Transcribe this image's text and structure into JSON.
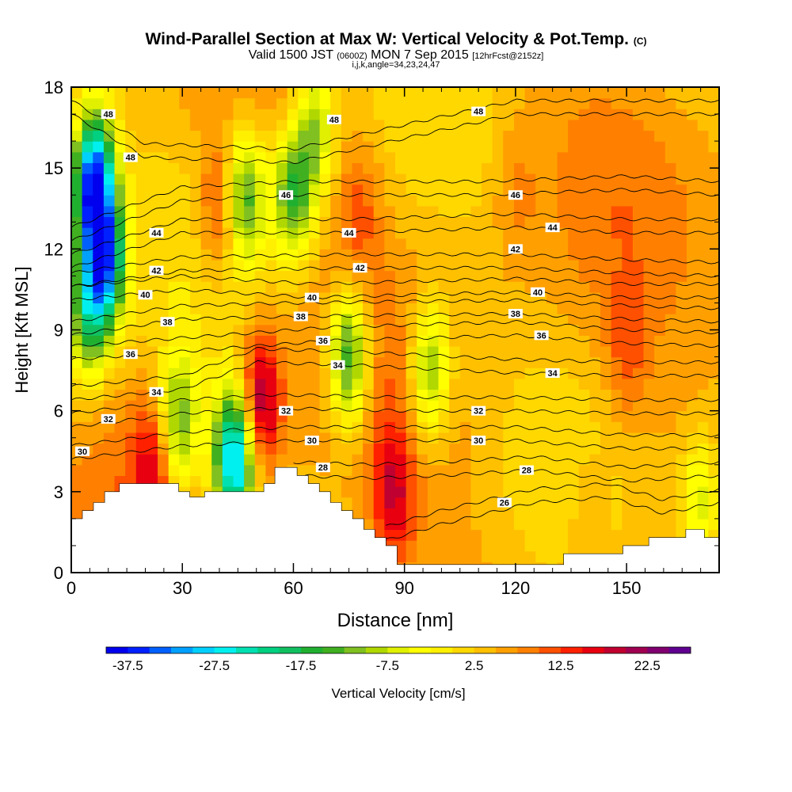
{
  "title": {
    "main": "Wind-Parallel Section at Max W: Vertical Velocity & Pot.Temp.",
    "copyright": "(C)",
    "valid_prefix": "Valid 1500 JST",
    "valid_utc": "(0600Z)",
    "valid_date": "MON 7 Sep 2015",
    "forecast": "[12hrFcst@2152z]",
    "ijk": "i,j,k,angle=34,23,24,47"
  },
  "chart_data": {
    "type": "heatmap",
    "title": "Wind-Parallel Section at Max W: Vertical Velocity & Pot.Temp.",
    "xlabel": "Distance [nm]",
    "ylabel": "Height [Kft MSL]",
    "xlim": [
      0,
      175
    ],
    "ylim": [
      0,
      18
    ],
    "xticks": [
      0,
      30,
      60,
      90,
      120,
      150
    ],
    "yticks": [
      0,
      3,
      6,
      9,
      12,
      15,
      18
    ],
    "colorbar": {
      "label": "Vertical Velocity [cm/s]",
      "tick_labels": [
        "-37.5",
        "-27.5",
        "-17.5",
        "-7.5",
        "2.5",
        "12.5",
        "22.5"
      ],
      "tick_values": [
        -37.5,
        -27.5,
        -17.5,
        -7.5,
        2.5,
        12.5,
        22.5
      ],
      "min": -40,
      "max": 27.5,
      "step": 2.5,
      "colors": [
        "#0000ee",
        "#0020ff",
        "#0060ff",
        "#00a0ff",
        "#00d0ff",
        "#00f0f0",
        "#00e0b0",
        "#00d080",
        "#10c060",
        "#20b030",
        "#40b020",
        "#80c020",
        "#b0d800",
        "#e0f000",
        "#ffff00",
        "#fff000",
        "#ffd800",
        "#ffc000",
        "#ffa000",
        "#ff8000",
        "#ff5000",
        "#ff2000",
        "#e80010",
        "#c00030",
        "#a00050",
        "#800070",
        "#600090"
      ]
    },
    "velocity_features": [
      {
        "x": 6,
        "y": 14.5,
        "w": -37
      },
      {
        "x": 9,
        "y": 11.5,
        "w": -28
      },
      {
        "x": 4,
        "y": 9.5,
        "w": -15
      },
      {
        "x": 40,
        "y": 13.5,
        "w": 14
      },
      {
        "x": 51,
        "y": 6.3,
        "w": 22
      },
      {
        "x": 44,
        "y": 4.2,
        "w": -32
      },
      {
        "x": 22,
        "y": 4,
        "w": 14
      },
      {
        "x": 29,
        "y": 5.5,
        "w": -14
      },
      {
        "x": 47,
        "y": 14,
        "w": -14
      },
      {
        "x": 60,
        "y": 14,
        "w": -16
      },
      {
        "x": 75,
        "y": 8,
        "w": -19
      },
      {
        "x": 97,
        "y": 7.5,
        "w": -13
      },
      {
        "x": 87,
        "y": 2.8,
        "w": 16
      },
      {
        "x": 78,
        "y": 13.5,
        "w": 10
      },
      {
        "x": 120,
        "y": 14,
        "w": 8
      },
      {
        "x": 150,
        "y": 8,
        "w": 10
      },
      {
        "x": 170,
        "y": 2.5,
        "w": -10
      },
      {
        "x": 140,
        "y": 2,
        "w": 8
      },
      {
        "x": 66,
        "y": 16.5,
        "w": -10
      }
    ],
    "theta_contours": [
      {
        "label": "26",
        "x": [
          85,
          100,
          125,
          145,
          160,
          175
        ],
        "y": [
          1.2,
          1.8,
          2.6,
          2.8,
          2.2,
          2.6
        ],
        "label_pos": [
          [
            117,
            2.6
          ]
        ]
      },
      {
        "label": "28",
        "x": [
          60,
          80,
          100,
          125,
          150,
          175
        ],
        "y": [
          3.6,
          3.5,
          3.6,
          3.8,
          3.4,
          3.6
        ],
        "label_pos": [
          [
            68,
            3.9
          ],
          [
            123,
            3.8
          ]
        ]
      },
      {
        "label": "30",
        "x": [
          0,
          30,
          60,
          90,
          120,
          150,
          175
        ],
        "y": [
          4.2,
          4.7,
          4.9,
          4.9,
          4.9,
          4.6,
          4.6
        ],
        "label_pos": [
          [
            3,
            4.5
          ],
          [
            65,
            4.9
          ],
          [
            110,
            4.9
          ]
        ]
      },
      {
        "label": "32",
        "x": [
          0,
          30,
          55,
          90,
          120,
          150,
          175
        ],
        "y": [
          5.4,
          5.9,
          6.1,
          6.0,
          6.0,
          5.9,
          5.9
        ],
        "label_pos": [
          [
            10,
            5.7
          ],
          [
            58,
            6.0
          ],
          [
            110,
            6.0
          ]
        ]
      },
      {
        "label": "34",
        "x": [
          0,
          30,
          50,
          75,
          120,
          150,
          175
        ],
        "y": [
          6.4,
          6.8,
          7.8,
          7.7,
          7.4,
          7.3,
          7.3
        ],
        "label_pos": [
          [
            23,
            6.7
          ],
          [
            72,
            7.7
          ],
          [
            130,
            7.4
          ]
        ]
      },
      {
        "label": "36",
        "x": [
          0,
          30,
          70,
          120,
          150,
          175
        ],
        "y": [
          7.9,
          8.2,
          8.6,
          8.8,
          8.5,
          8.4
        ],
        "label_pos": [
          [
            16,
            8.1
          ],
          [
            68,
            8.6
          ],
          [
            127,
            8.8
          ]
        ]
      },
      {
        "label": "38",
        "x": [
          0,
          30,
          60,
          120,
          150,
          175
        ],
        "y": [
          8.8,
          9.4,
          9.5,
          9.6,
          9.4,
          9.3
        ],
        "label_pos": [
          [
            26,
            9.3
          ],
          [
            62,
            9.5
          ],
          [
            120,
            9.6
          ]
        ]
      },
      {
        "label": "40",
        "x": [
          0,
          30,
          65,
          120,
          150,
          175
        ],
        "y": [
          10.1,
          10.5,
          10.2,
          10.4,
          10.2,
          10.2
        ],
        "label_pos": [
          [
            20,
            10.3
          ],
          [
            65,
            10.2
          ],
          [
            126,
            10.4
          ]
        ]
      },
      {
        "label": "42",
        "x": [
          0,
          30,
          78,
          120,
          150,
          175
        ],
        "y": [
          10.6,
          11.2,
          11.3,
          11.3,
          11.1,
          11.0
        ],
        "label_pos": [
          [
            23,
            11.2
          ],
          [
            78,
            11.3
          ],
          [
            120,
            12.0
          ]
        ]
      },
      {
        "label": "44",
        "x": [
          0,
          30,
          75,
          120,
          150,
          175
        ],
        "y": [
          11.3,
          12.6,
          12.6,
          12.8,
          12.6,
          12.6
        ],
        "label_pos": [
          [
            23,
            12.6
          ],
          [
            75,
            12.6
          ],
          [
            130,
            12.8
          ]
        ]
      },
      {
        "label": "46",
        "x": [
          0,
          30,
          60,
          110,
          150,
          175
        ],
        "y": [
          12.3,
          13.8,
          14.0,
          14.0,
          14.2,
          14.0
        ],
        "label_pos": [
          [
            58,
            14.0
          ],
          [
            120,
            14.0
          ]
        ]
      },
      {
        "label": "48",
        "x": [
          0,
          20,
          60,
          90,
          120,
          150,
          175
        ],
        "y": [
          17.0,
          15.4,
          15.2,
          16.1,
          17.0,
          17.0,
          17.0
        ],
        "label_pos": [
          [
            10,
            17.0
          ],
          [
            16,
            15.4
          ],
          [
            71,
            16.8
          ],
          [
            110,
            17.1
          ]
        ]
      }
    ],
    "terrain": {
      "x": [
        0,
        3,
        3,
        6,
        6,
        9,
        9,
        13,
        13,
        16,
        16,
        29,
        29,
        32,
        32,
        36,
        36,
        52,
        52,
        55,
        55,
        61,
        61,
        64,
        64,
        67,
        67,
        70,
        70,
        73,
        73,
        76,
        76,
        79,
        79,
        82,
        82,
        85,
        85,
        88,
        88,
        133,
        133,
        146,
        146,
        149,
        149,
        156,
        156,
        166,
        166,
        171,
        171,
        175
      ],
      "y": [
        2,
        2,
        2.3,
        2.3,
        2.6,
        2.6,
        3,
        3,
        3.3,
        3.3,
        3.3,
        3.3,
        3,
        3,
        2.8,
        2.8,
        3,
        3,
        3.3,
        3.3,
        3.9,
        3.9,
        3.6,
        3.6,
        3.3,
        3.3,
        3,
        3,
        2.6,
        2.6,
        2.3,
        2.3,
        2,
        2,
        1.6,
        1.6,
        1.3,
        1.3,
        1,
        1,
        0.3,
        0.3,
        0.7,
        0.7,
        0.7,
        0.7,
        1,
        1,
        1.3,
        1.3,
        1.6,
        1.6,
        1.3,
        1.3
      ]
    }
  }
}
